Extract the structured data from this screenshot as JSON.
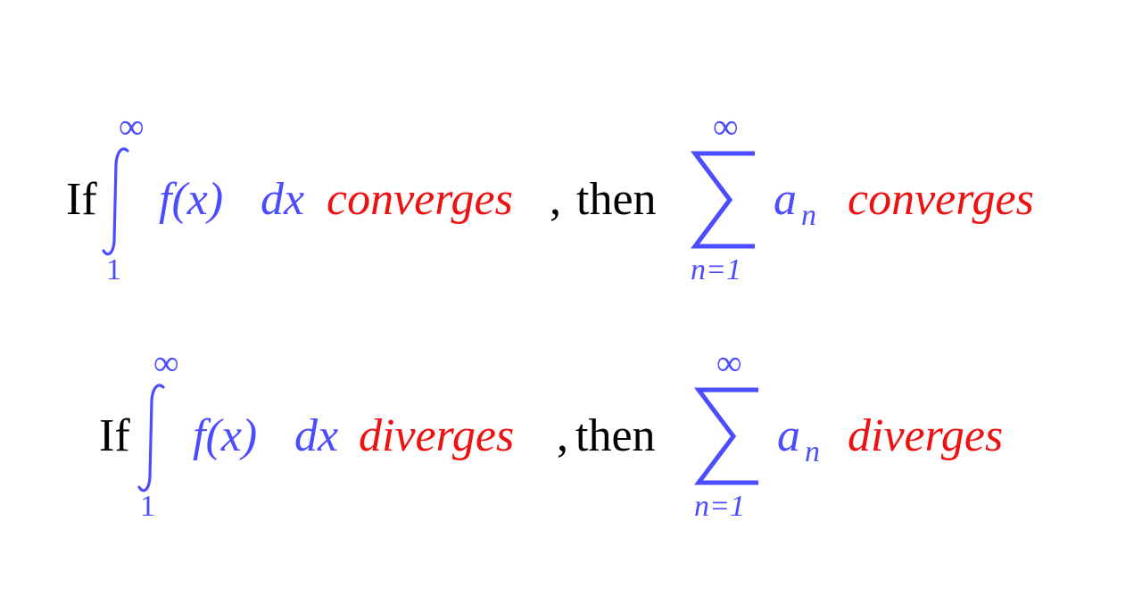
{
  "colors": {
    "text": "#000000",
    "math": "#4b4bff",
    "highlight": "#ee1111"
  },
  "statements": [
    {
      "if_word": "If",
      "integral": {
        "upper": "∞",
        "lower": "1",
        "integrand": "f(x)",
        "differential": "dx"
      },
      "result_1": "converges",
      "comma": ",",
      "then_word": "then",
      "sum": {
        "upper": "∞",
        "lower": "n=1",
        "term": "a",
        "term_subscript": "n"
      },
      "result_2": "converges"
    },
    {
      "if_word": "If",
      "integral": {
        "upper": "∞",
        "lower": "1",
        "integrand": "f(x)",
        "differential": "dx"
      },
      "result_1": "diverges",
      "comma": ",",
      "then_word": "then",
      "sum": {
        "upper": "∞",
        "lower": "n=1",
        "term": "a",
        "term_subscript": "n"
      },
      "result_2": "diverges"
    }
  ]
}
